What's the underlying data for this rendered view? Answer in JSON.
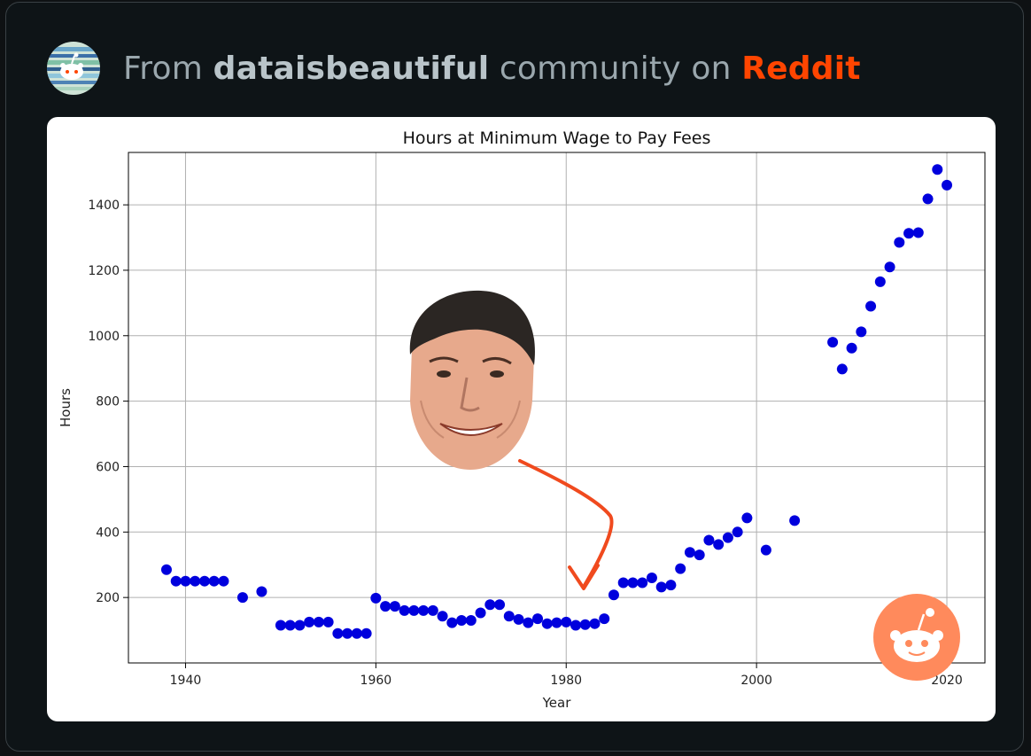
{
  "header": {
    "prefix": "From ",
    "community": "dataisbeautiful",
    "middle": " community on ",
    "brand": "Reddit"
  },
  "colors": {
    "brand": "#ff4500",
    "point": "#0000dd",
    "arrow": "#f04a1e",
    "grid": "#b0b0b0"
  },
  "chart_data": {
    "type": "scatter",
    "title": "Hours at Minimum Wage to Pay Fees",
    "xlabel": "Year",
    "ylabel": "Hours",
    "xlim": [
      1934,
      2024
    ],
    "ylim": [
      0,
      1560
    ],
    "xticks": [
      1940,
      1960,
      1980,
      2000,
      2020
    ],
    "yticks": [
      200,
      400,
      600,
      800,
      1000,
      1200,
      1400
    ],
    "grid": true,
    "series": [
      {
        "x": [
          1938,
          1939,
          1940,
          1941,
          1942,
          1943,
          1944,
          1946,
          1948,
          1950,
          1951,
          1952,
          1953,
          1954,
          1955,
          1956,
          1957,
          1958,
          1959,
          1960,
          1961,
          1962,
          1963,
          1964,
          1965,
          1966,
          1967,
          1968,
          1969,
          1970,
          1971,
          1972,
          1973,
          1974,
          1975,
          1976,
          1977,
          1978,
          1979,
          1980,
          1981,
          1982,
          1983,
          1984,
          1985,
          1986,
          1987,
          1988,
          1989,
          1990,
          1991,
          1992,
          1993,
          1994,
          1995,
          1996,
          1997,
          1998,
          1999,
          2001,
          2004,
          2008,
          2009,
          2010,
          2011,
          2012,
          2013,
          2014,
          2015,
          2016,
          2017,
          2018,
          2019,
          2020
        ],
        "y": [
          285,
          250,
          250,
          250,
          250,
          250,
          250,
          200,
          218,
          115,
          115,
          115,
          125,
          125,
          125,
          90,
          90,
          90,
          90,
          198,
          173,
          173,
          160,
          160,
          160,
          160,
          143,
          123,
          130,
          130,
          153,
          178,
          178,
          143,
          133,
          123,
          135,
          120,
          123,
          125,
          115,
          117,
          120,
          135,
          208,
          245,
          245,
          245,
          260,
          232,
          238,
          288,
          338,
          330,
          375,
          362,
          383,
          400,
          443,
          345,
          435,
          980,
          898,
          962,
          1012,
          1090,
          1165,
          1210,
          1285,
          1313,
          1315,
          1418,
          1508,
          1460
        ]
      }
    ]
  }
}
